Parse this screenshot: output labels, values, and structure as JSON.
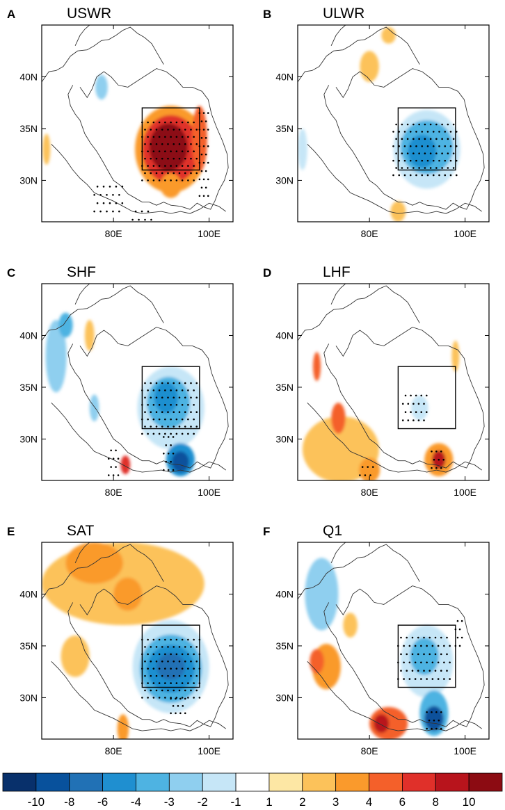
{
  "chart_data": {
    "type": "heatmap",
    "panels": [
      {
        "letter": "A",
        "title": "USWR",
        "anomalies": [
          {
            "lon": 92,
            "lat": 33,
            "rx": 7.5,
            "ry": 4.2,
            "value": 3
          },
          {
            "lon": 92,
            "lat": 33,
            "rx": 6,
            "ry": 3.3,
            "value": 6
          },
          {
            "lon": 91.5,
            "lat": 33.2,
            "rx": 4,
            "ry": 2.3,
            "value": 10
          },
          {
            "lon": 98,
            "lat": 34,
            "rx": 1.6,
            "ry": 3.2,
            "value": 4
          },
          {
            "lon": 92,
            "lat": 29.5,
            "rx": 2.2,
            "ry": 1.2,
            "value": 3
          },
          {
            "lon": 77.5,
            "lat": 39,
            "rx": 1.3,
            "ry": 1.2,
            "value": -3
          },
          {
            "lon": 66,
            "lat": 33,
            "rx": 0.8,
            "ry": 1.5,
            "value": 2
          }
        ],
        "stipples": [
          {
            "lon0": 86,
            "lon1": 97.5,
            "lat0": 30,
            "lat1": 36,
            "dlon": 1.2,
            "dlat": 0.7
          },
          {
            "lon0": 98,
            "lon1": 100,
            "lat0": 28.5,
            "lat1": 36.5,
            "dlon": 0.9,
            "dlat": 0.8
          },
          {
            "lon0": 76,
            "lon1": 82,
            "lat0": 27,
            "lat1": 29.5,
            "dlon": 1.3,
            "dlat": 0.8
          },
          {
            "lon0": 84,
            "lon1": 88,
            "lat0": 26.2,
            "lat1": 27.2,
            "dlon": 1.3,
            "dlat": 0.8
          }
        ]
      },
      {
        "letter": "B",
        "title": "ULWR",
        "anomalies": [
          {
            "lon": 92,
            "lat": 33,
            "rx": 7,
            "ry": 3.8,
            "value": -2
          },
          {
            "lon": 92,
            "lat": 33.2,
            "rx": 5.5,
            "ry": 2.6,
            "value": -4
          },
          {
            "lon": 91,
            "lat": 32.8,
            "rx": 3,
            "ry": 1.6,
            "value": -6
          },
          {
            "lon": 80,
            "lat": 41,
            "rx": 2,
            "ry": 1.5,
            "value": 2
          },
          {
            "lon": 84,
            "lat": 44,
            "rx": 1.5,
            "ry": 0.8,
            "value": 2
          },
          {
            "lon": 86,
            "lat": 27,
            "rx": 1.6,
            "ry": 1,
            "value": 2
          },
          {
            "lon": 66,
            "lat": 33,
            "rx": 1,
            "ry": 2,
            "value": -2
          }
        ],
        "stipples": [
          {
            "lon0": 85,
            "lon1": 98.5,
            "lat0": 30.5,
            "lat1": 35.5,
            "dlon": 1.2,
            "dlat": 0.7
          }
        ]
      },
      {
        "letter": "C",
        "title": "SHF",
        "anomalies": [
          {
            "lon": 92,
            "lat": 33,
            "rx": 7,
            "ry": 4,
            "value": -2
          },
          {
            "lon": 91.5,
            "lat": 33.5,
            "rx": 4.5,
            "ry": 2.5,
            "value": -4
          },
          {
            "lon": 91,
            "lat": 34,
            "rx": 2.5,
            "ry": 1.5,
            "value": -6
          },
          {
            "lon": 94,
            "lat": 28,
            "rx": 3,
            "ry": 1.6,
            "value": -6
          },
          {
            "lon": 94,
            "lat": 27.8,
            "rx": 1.8,
            "ry": 1,
            "value": -10
          },
          {
            "lon": 82.5,
            "lat": 27.5,
            "rx": 1,
            "ry": 0.9,
            "value": 6
          },
          {
            "lon": 68,
            "lat": 38,
            "rx": 2.2,
            "ry": 3.5,
            "value": -3
          },
          {
            "lon": 70,
            "lat": 41,
            "rx": 1.5,
            "ry": 1.2,
            "value": -4
          },
          {
            "lon": 75,
            "lat": 40,
            "rx": 1,
            "ry": 1.5,
            "value": 2
          },
          {
            "lon": 76,
            "lat": 33,
            "rx": 1,
            "ry": 1.3,
            "value": -3
          }
        ],
        "stipples": [
          {
            "lon0": 86,
            "lon1": 97.5,
            "lat0": 30.5,
            "lat1": 36,
            "dlon": 1.2,
            "dlat": 0.7
          },
          {
            "lon0": 90.5,
            "lon1": 92.5,
            "lat0": 27,
            "lat1": 30.5,
            "dlon": 1,
            "dlat": 0.8
          },
          {
            "lon0": 79,
            "lon1": 81,
            "lat0": 26.5,
            "lat1": 29,
            "dlon": 1,
            "dlat": 0.8
          }
        ]
      },
      {
        "letter": "D",
        "title": "LHF",
        "anomalies": [
          {
            "lon": 74,
            "lat": 29,
            "rx": 8,
            "ry": 3.2,
            "value": 2
          },
          {
            "lon": 73.5,
            "lat": 32,
            "rx": 1.5,
            "ry": 1.5,
            "value": 4
          },
          {
            "lon": 69,
            "lat": 37,
            "rx": 0.8,
            "ry": 1.4,
            "value": 4
          },
          {
            "lon": 94.5,
            "lat": 28,
            "rx": 3,
            "ry": 1.6,
            "value": 3
          },
          {
            "lon": 94.5,
            "lat": 28,
            "rx": 1.4,
            "ry": 0.9,
            "value": 8
          },
          {
            "lon": 80,
            "lat": 27,
            "rx": 2.2,
            "ry": 1.2,
            "value": 3
          },
          {
            "lon": 90.5,
            "lat": 33,
            "rx": 1.8,
            "ry": 1.2,
            "value": -2
          },
          {
            "lon": 98,
            "lat": 38,
            "rx": 0.8,
            "ry": 1.5,
            "value": 2
          }
        ],
        "stipples": [
          {
            "lon0": 87,
            "lon1": 92,
            "lat0": 31.8,
            "lat1": 34.5,
            "dlon": 1.1,
            "dlat": 0.8
          },
          {
            "lon0": 93,
            "lon1": 95.5,
            "lat0": 27.2,
            "lat1": 29.5,
            "dlon": 1,
            "dlat": 0.8
          },
          {
            "lon0": 78,
            "lon1": 81,
            "lat0": 26.5,
            "lat1": 28,
            "dlon": 1.1,
            "dlat": 0.8
          }
        ]
      },
      {
        "letter": "E",
        "title": "SAT",
        "anomalies": [
          {
            "lon": 82,
            "lat": 41,
            "rx": 17,
            "ry": 4,
            "value": 2
          },
          {
            "lon": 76,
            "lat": 43,
            "rx": 6,
            "ry": 2,
            "value": 3
          },
          {
            "lon": 83,
            "lat": 40,
            "rx": 3,
            "ry": 1.6,
            "value": 3
          },
          {
            "lon": 92,
            "lat": 33,
            "rx": 8,
            "ry": 4.5,
            "value": -2
          },
          {
            "lon": 92,
            "lat": 32.8,
            "rx": 6.5,
            "ry": 3.3,
            "value": -4
          },
          {
            "lon": 92,
            "lat": 32.8,
            "rx": 5,
            "ry": 2.3,
            "value": -6
          },
          {
            "lon": 92,
            "lat": 33,
            "rx": 3,
            "ry": 1.3,
            "value": -8
          },
          {
            "lon": 72,
            "lat": 34,
            "rx": 3,
            "ry": 2,
            "value": 2
          },
          {
            "lon": 82,
            "lat": 27,
            "rx": 1.2,
            "ry": 1.4,
            "value": 3
          }
        ],
        "stipples": [
          {
            "lon0": 86,
            "lon1": 98.5,
            "lat0": 30,
            "lat1": 36,
            "dlon": 1.2,
            "dlat": 0.7
          },
          {
            "lon0": 92,
            "lon1": 95,
            "lat0": 28.5,
            "lat1": 30,
            "dlon": 1,
            "dlat": 0.7
          }
        ]
      },
      {
        "letter": "F",
        "title": "Q1",
        "anomalies": [
          {
            "lon": 92,
            "lat": 33.5,
            "rx": 5.5,
            "ry": 3.5,
            "value": -2
          },
          {
            "lon": 91.5,
            "lat": 34,
            "rx": 3,
            "ry": 1.8,
            "value": -4
          },
          {
            "lon": 93.5,
            "lat": 28.5,
            "rx": 3,
            "ry": 2.2,
            "value": -4
          },
          {
            "lon": 93.5,
            "lat": 28,
            "rx": 2,
            "ry": 1.2,
            "value": -10
          },
          {
            "lon": 84,
            "lat": 27.5,
            "rx": 4,
            "ry": 1.6,
            "value": 4
          },
          {
            "lon": 82.5,
            "lat": 27.5,
            "rx": 1.6,
            "ry": 0.9,
            "value": 8
          },
          {
            "lon": 70,
            "lat": 40,
            "rx": 3.5,
            "ry": 3.5,
            "value": -3
          },
          {
            "lon": 71,
            "lat": 33,
            "rx": 3,
            "ry": 2.2,
            "value": 3
          },
          {
            "lon": 69,
            "lat": 33.5,
            "rx": 1.5,
            "ry": 1.2,
            "value": 4
          },
          {
            "lon": 76,
            "lat": 37,
            "rx": 1.5,
            "ry": 1.2,
            "value": 2
          }
        ],
        "stipples": [
          {
            "lon0": 86,
            "lon1": 97,
            "lat0": 31.8,
            "lat1": 36,
            "dlon": 1.2,
            "dlat": 0.8
          },
          {
            "lon0": 98,
            "lon1": 99.5,
            "lat0": 35,
            "lat1": 38,
            "dlon": 0.9,
            "dlat": 0.8
          },
          {
            "lon0": 92,
            "lon1": 95,
            "lat0": 27,
            "lat1": 29,
            "dlon": 1,
            "dlat": 0.8
          }
        ]
      }
    ],
    "lon_range": [
      65,
      105
    ],
    "lat_range": [
      26,
      45
    ],
    "lon_ticks": [
      80,
      100
    ],
    "lat_ticks": [
      30,
      35,
      40
    ],
    "lon_tick_labels": [
      "80E",
      "100E"
    ],
    "lat_tick_labels": [
      "30N",
      "35N",
      "40N"
    ],
    "box": {
      "lon": [
        86,
        98
      ],
      "lat": [
        31,
        37
      ]
    },
    "colorbar": {
      "labels": [
        "-10",
        "-8",
        "-6",
        "-4",
        "-3",
        "-2",
        "-1",
        "1",
        "2",
        "3",
        "4",
        "6",
        "8",
        "10"
      ],
      "colors": [
        "#08306b",
        "#08519c",
        "#2171b5",
        "#1f8fd0",
        "#4eb3e2",
        "#8fcfef",
        "#c6e6f7",
        "#ffffff",
        "#fde7a4",
        "#fcc25a",
        "#fa9a2c",
        "#f4602a",
        "#e0302a",
        "#b8141c",
        "#8c0b12"
      ]
    }
  }
}
